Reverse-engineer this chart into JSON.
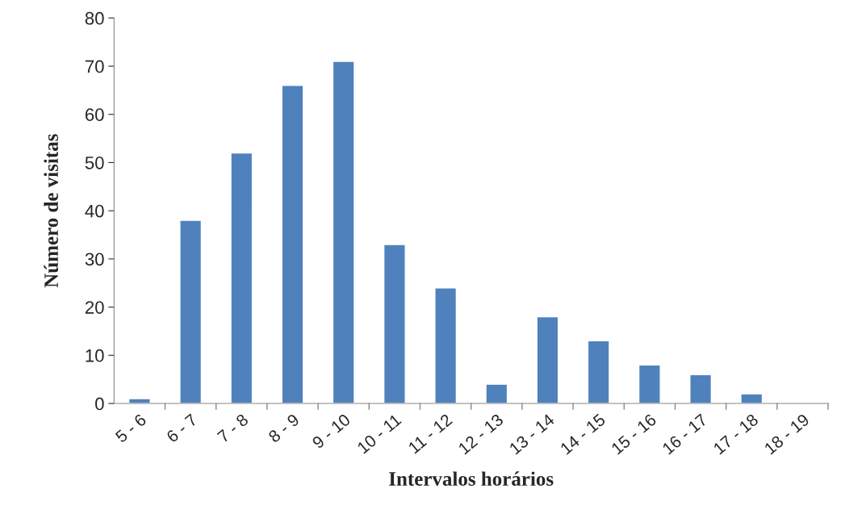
{
  "chart_data": {
    "type": "bar",
    "xlabel": "Intervalos horários",
    "ylabel": "Número de visitas",
    "categories": [
      "5 - 6",
      "6 - 7",
      "7 - 8",
      "8 - 9",
      "9 - 10",
      "10 - 11",
      "11 - 12",
      "12 - 13",
      "13 - 14",
      "14 - 15",
      "15 - 16",
      "16 - 17",
      "17 - 18",
      "18 - 19"
    ],
    "values": [
      1,
      38,
      52,
      66,
      71,
      33,
      24,
      4,
      18,
      13,
      8,
      6,
      2,
      null
    ],
    "color": "#4f81bd",
    "ylim": [
      0,
      80
    ],
    "yticks": [
      0,
      10,
      20,
      30,
      40,
      50,
      60,
      70,
      80
    ],
    "grid": false
  }
}
